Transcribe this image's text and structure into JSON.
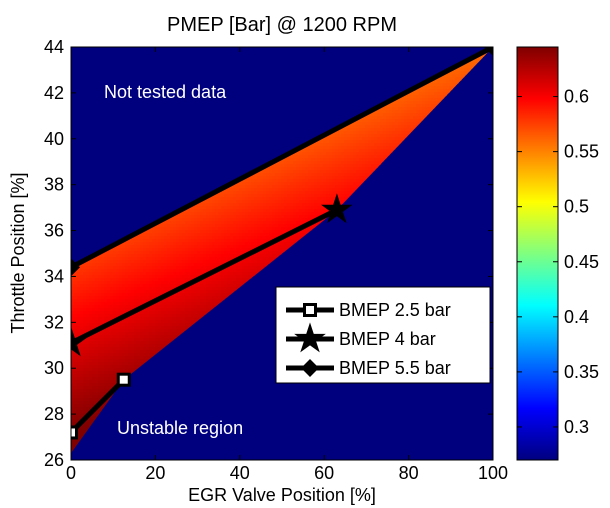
{
  "chart_data": {
    "type": "heatmap",
    "title": "PMEP [Bar] @ 1200 RPM",
    "xlabel": "EGR Valve Position [%]",
    "ylabel": "Throttle Position [%]",
    "xlim": [
      0,
      100
    ],
    "ylim": [
      26,
      44
    ],
    "x_ticks": [
      "0",
      "20",
      "40",
      "60",
      "80",
      "100"
    ],
    "y_ticks": [
      "26",
      "28",
      "30",
      "32",
      "34",
      "36",
      "38",
      "40",
      "42",
      "44"
    ],
    "colorbar": {
      "clim": [
        0.27,
        0.645
      ],
      "ticks": [
        "0.3",
        "0.35",
        "0.4",
        "0.45",
        "0.5",
        "0.55",
        "0.6"
      ],
      "colormap": "jet"
    },
    "background_color": "#00007f",
    "tested_region": {
      "polygon": [
        [
          0,
          27.2
        ],
        [
          0,
          34.4
        ],
        [
          100,
          44.0
        ],
        [
          63,
          36.9
        ],
        [
          12.5,
          29.5
        ],
        [
          0,
          26.3
        ]
      ],
      "value_model": "0.645 - 0.0094*(y - 27.2 - 0.076*x)"
    },
    "annotations": [
      "Not tested data",
      "Unstable region"
    ],
    "legend_position": "lower-right",
    "series": [
      {
        "name": "BMEP 2.5 bar",
        "marker": "square",
        "x": [
          0,
          12.5
        ],
        "y": [
          27.2,
          29.5
        ]
      },
      {
        "name": "BMEP 4 bar",
        "marker": "star",
        "x": [
          0,
          63
        ],
        "y": [
          31.1,
          36.9
        ]
      },
      {
        "name": "BMEP 5.5 bar",
        "marker": "diamond",
        "x": [
          0,
          100
        ],
        "y": [
          34.4,
          44.0
        ]
      }
    ]
  }
}
